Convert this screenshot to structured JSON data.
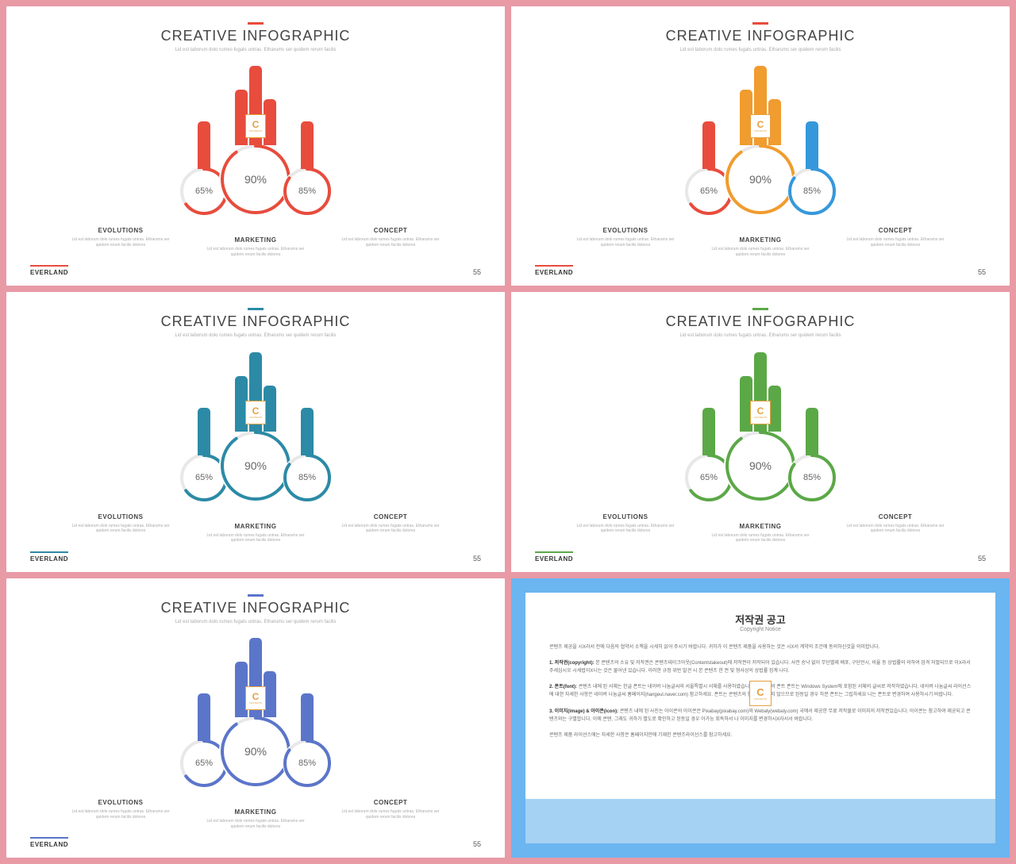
{
  "common": {
    "title": "CREATIVE INFOGRAPHIC",
    "subtitle": "Lid est laborum dolo rumes fugats untras. Etharums ser quidem rerum facilis",
    "brand": "EVERLAND",
    "page": "55",
    "icon_label": "CONTENTS",
    "items": [
      {
        "label": "EVOLUTIONS",
        "pct": 65,
        "pct_text": "65%",
        "desc": "Lid est laborum dolo rumes fugats untras. Etharums ser quidem rerum facilis dolores"
      },
      {
        "label": "MARKETING",
        "pct": 90,
        "pct_text": "90%",
        "desc": "Lid est laborum dolo rumes fugats untras. Etharums ser quidem rerum facilis dolores"
      },
      {
        "label": "CONCEPT",
        "pct": 85,
        "pct_text": "85%",
        "desc": "Lid est laborum dolo rumes fugats untras. Etharums ser quidem rerum facilis dolores"
      }
    ],
    "center_bar_heights": [
      70,
      100,
      58
    ],
    "ring_bg_color": "#e8e8e8"
  },
  "slides": [
    {
      "accent": "#e84c3d",
      "colors": [
        "#e84c3d",
        "#e84c3d",
        "#e84c3d"
      ]
    },
    {
      "accent": "#e84c3d",
      "colors": [
        "#e84c3d",
        "#f09c2e",
        "#3598db"
      ]
    },
    {
      "accent": "#2c8aa6",
      "colors": [
        "#2c8aa6",
        "#2c8aa6",
        "#2c8aa6"
      ]
    },
    {
      "accent": "#5ba847",
      "colors": [
        "#5ba847",
        "#5ba847",
        "#5ba847"
      ]
    },
    {
      "accent": "#5b75c9",
      "colors": [
        "#5b75c9",
        "#5b75c9",
        "#5b75c9"
      ]
    }
  ],
  "copyright": {
    "title": "저작권 공고",
    "subtitle": "Copyright Notice",
    "intro": "콘텐츠 제공을 시X라서 전에 다음의 협약서 소책을 시세히 읽어 주시기 바랍니다. 귀하가 이 콘텐츠 제품을 사용하는 것은 시X서 계약의 조건에 동의하신것을 의미합니다.",
    "p1_head": "1. 저작권(copyright):",
    "p1_body": "본 콘텐츠의 소유 및 저작권은 콘텐츠테이크아웃(Contentstakeout)에 저작권이 저작되어 있습니다. 사전 승낙 없이 무단별제 배포, 구단언시, 비율 등 상법률의 의하여 엄격 처벌되므로 이X라서 주세십시오 시세법이X니는 것은 물어낸 있습니다. 이러한 규정 위반 발견 시 본 콘텐츠 한 권 및 형사상의 상법률 징계 나다.",
    "p2_head": "2. 폰트(font):",
    "p2_body": "콘텐츠 내에 된 서체는 한글 폰트는 네이버 나눔글씨와 서울특별시 서체를 사용하였습니다. 한글 외의 폰트 폰트는 Windows System에 포함된 서체의 글씨로 저작하였습니다. 네이버 나눔글씨 라이선스에 대한 자세한 사항은 네이버 나눔글씨 홈페이지(hangeul.naver.com) 참고하세요. 폰트는 콘텐츠의 함께 제공되지 않으므로 된동일 경우 하문 폰트는 그립하세요 니는 폰트로 변경하여 사용하시기 바랍니다.",
    "p3_head": "3. 이미지(image) & 아이콘(icon):",
    "p3_body": "콘텐츠 내에 된 사진는 아이콘의 아이콘은 Pixabay(pixabay.com)와 Webaly(webaly.com) 국에서 제공한 무료 저작물로 이미지의 저작권있습니다. 아이콘는 참고하여 제공되고 콘텐츠와는 구별합니다. 이에 콘텐, 그래도 귀하가 별도로 확인하고 된동일 경우 아가능 회독하서 나 이미지를 변경하시X라서서 바랍니다.",
    "footer": "콘텐츠 제품 라이선스에는 자세한 사항은 홈페이지만에 기재한 콘텐츠라이선스를 참고하세요."
  }
}
